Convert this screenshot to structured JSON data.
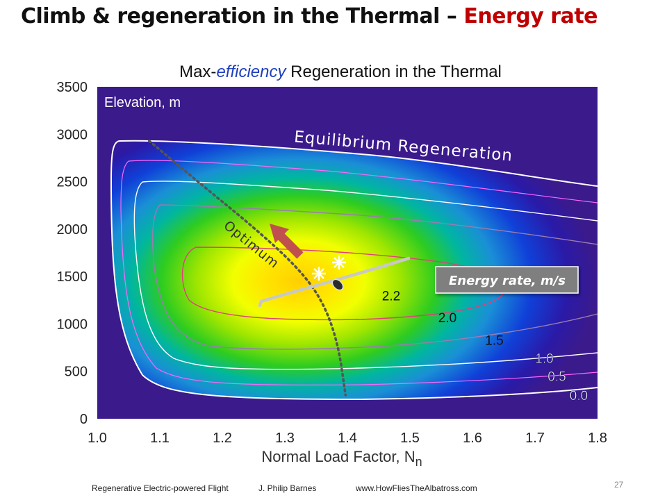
{
  "slide": {
    "title_main": "Climb & regeneration in the Thermal – ",
    "title_accent": "Energy rate",
    "accent_color": "#c00000",
    "footer": {
      "course": "Regenerative Electric-powered Flight",
      "author": "J. Philip Barnes",
      "website": "www.HowFliesTheAlbatross.com"
    },
    "page_number": "27"
  },
  "chart_data": {
    "type": "heatmap",
    "title_prefix": "Max-",
    "title_italic": "efficiency",
    "title_suffix": " Regeneration in the Thermal",
    "xlabel": "Normal Load Factor, N",
    "xlabel_subscript": "n",
    "ylabel_inside": "Elevation, m",
    "xlim": [
      1.0,
      1.8
    ],
    "ylim": [
      0,
      3500
    ],
    "xticks": [
      "1.0",
      "1.1",
      "1.2",
      "1.3",
      "1.4",
      "1.5",
      "1.6",
      "1.7",
      "1.8"
    ],
    "yticks": [
      "0",
      "500",
      "1000",
      "1500",
      "2000",
      "2500",
      "3000",
      "3500"
    ],
    "background_color": "#3b1a8c",
    "contour_levels": [
      {
        "label": "0.0",
        "x": 1.77,
        "y": 250
      },
      {
        "label": "0.5",
        "x": 1.735,
        "y": 450
      },
      {
        "label": "1.0",
        "x": 1.715,
        "y": 640
      },
      {
        "label": "1.5",
        "x": 1.635,
        "y": 830
      },
      {
        "label": "2.0",
        "x": 1.56,
        "y": 1070
      },
      {
        "label": "2.2",
        "x": 1.47,
        "y": 1300
      }
    ],
    "optimum_curve": [
      {
        "x": 1.083,
        "y": 2930
      },
      {
        "x": 1.17,
        "y": 2450
      },
      {
        "x": 1.25,
        "y": 2020
      },
      {
        "x": 1.32,
        "y": 1600
      },
      {
        "x": 1.36,
        "y": 1250
      },
      {
        "x": 1.385,
        "y": 800
      },
      {
        "x": 1.397,
        "y": 250
      }
    ],
    "annotations": {
      "equilibrium": "Equilibrium Regeneration",
      "optimum": "Optimum",
      "energy_rate_box": "Energy rate, m/s"
    }
  }
}
